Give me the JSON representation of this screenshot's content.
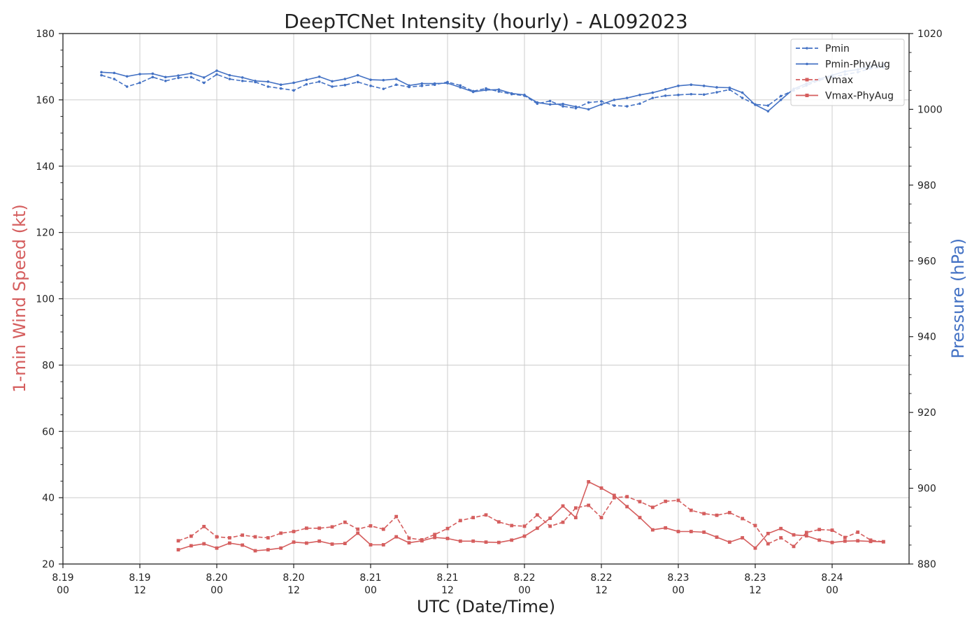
{
  "chart_data": {
    "type": "line",
    "title": "DeepTCNet Intensity (hourly) - AL092023",
    "xlabel": "UTC (Date/Time)",
    "ylabel_left": "1-min Wind Speed (kt)",
    "ylabel_right": "Pressure (hPa)",
    "ylim_left": [
      20,
      180
    ],
    "ylim_right": [
      880,
      1020
    ],
    "yticks_left": [
      "20",
      "40",
      "60",
      "80",
      "100",
      "120",
      "140",
      "160",
      "180"
    ],
    "yticks_right": [
      "880",
      "900",
      "920",
      "940",
      "960",
      "980",
      "1000",
      "1020"
    ],
    "xlim_hours": [
      0,
      132
    ],
    "xticks": [
      {
        "date": "8.19",
        "time": "00"
      },
      {
        "date": "8.19",
        "time": "12"
      },
      {
        "date": "8.20",
        "time": "00"
      },
      {
        "date": "8.20",
        "time": "12"
      },
      {
        "date": "8.21",
        "time": "00"
      },
      {
        "date": "8.21",
        "time": "12"
      },
      {
        "date": "8.22",
        "time": "00"
      },
      {
        "date": "8.22",
        "time": "12"
      },
      {
        "date": "8.23",
        "time": "00"
      },
      {
        "date": "8.23",
        "time": "12"
      },
      {
        "date": "8.24",
        "time": "00"
      }
    ],
    "grid": true,
    "legend_position": "top-right",
    "colors": {
      "pressure": "#4472c4",
      "wind": "#d55e5e"
    },
    "series": [
      {
        "name": "Pmin",
        "axis": "right",
        "style": "dashed",
        "marker": "dot",
        "color": "#4472c4",
        "x": [
          6,
          8,
          10,
          12,
          14,
          16,
          18,
          20,
          22,
          24,
          26,
          28,
          30,
          32,
          34,
          36,
          38,
          40,
          42,
          44,
          46,
          48,
          50,
          52,
          54,
          56,
          58,
          60,
          62,
          64,
          66,
          68,
          70,
          72,
          74,
          76,
          78,
          80,
          82,
          84,
          86,
          88,
          90,
          92,
          94,
          96,
          98,
          100,
          102,
          104,
          106,
          108,
          110,
          112,
          114,
          116,
          118,
          120,
          122,
          124,
          126,
          128
        ],
        "values": [
          1009.0,
          1008.0,
          1006.0,
          1007.0,
          1008.5,
          1007.5,
          1008.3,
          1008.5,
          1007.0,
          1009.2,
          1008.0,
          1007.5,
          1007.2,
          1006.0,
          1005.5,
          1005.0,
          1006.6,
          1007.3,
          1006.0,
          1006.4,
          1007.2,
          1006.2,
          1005.4,
          1006.5,
          1005.9,
          1006.2,
          1006.5,
          1007.2,
          1006.3,
          1004.8,
          1005.5,
          1004.7,
          1004.0,
          1003.6,
          1001.5,
          1002.2,
          1000.8,
          1000.3,
          1001.8,
          1002.1,
          1001.0,
          1000.8,
          1001.5,
          1003.0,
          1003.6,
          1003.8,
          1004.0,
          1003.9,
          1004.5,
          1005.2,
          1003.0,
          1001.3,
          1001.0,
          1003.5,
          1005.0,
          1006.3,
          1007.7,
          1008.5,
          1009.2,
          1009.8,
          1010.8,
          1011.1
        ]
      },
      {
        "name": "Pmin-PhyAug",
        "axis": "right",
        "style": "solid",
        "marker": "dot",
        "color": "#4472c4",
        "x": [
          6,
          8,
          10,
          12,
          14,
          16,
          18,
          20,
          22,
          24,
          26,
          28,
          30,
          32,
          34,
          36,
          38,
          40,
          42,
          44,
          46,
          48,
          50,
          52,
          54,
          56,
          58,
          60,
          62,
          64,
          66,
          68,
          70,
          72,
          74,
          76,
          78,
          80,
          82,
          84,
          86,
          88,
          90,
          92,
          94,
          96,
          98,
          100,
          102,
          104,
          106,
          108,
          110,
          112,
          114,
          116,
          118,
          120,
          122,
          124,
          126,
          128
        ],
        "values": [
          1009.8,
          1009.6,
          1008.7,
          1009.3,
          1009.4,
          1008.5,
          1008.9,
          1009.5,
          1008.4,
          1010.2,
          1009.0,
          1008.4,
          1007.5,
          1007.3,
          1006.5,
          1007.0,
          1007.8,
          1008.6,
          1007.4,
          1008.0,
          1009.0,
          1007.8,
          1007.7,
          1008.0,
          1006.3,
          1006.8,
          1006.8,
          1006.9,
          1005.8,
          1004.6,
          1005.1,
          1005.2,
          1004.2,
          1003.8,
          1001.8,
          1001.3,
          1001.4,
          1000.7,
          1000.0,
          1001.3,
          1002.5,
          1003.0,
          1003.8,
          1004.4,
          1005.3,
          1006.2,
          1006.5,
          1006.2,
          1005.8,
          1005.7,
          1004.4,
          1001.2,
          999.5,
          1002.5,
          1005.4,
          1006.8,
          1008.0,
          1009.0,
          1010.0,
          1010.5,
          1011.3,
          1011.9
        ]
      },
      {
        "name": "Vmax",
        "axis": "left",
        "style": "dashed",
        "marker": "square",
        "color": "#d55e5e",
        "x": [
          18,
          20,
          22,
          24,
          26,
          28,
          30,
          32,
          34,
          36,
          38,
          40,
          42,
          44,
          46,
          48,
          50,
          52,
          54,
          56,
          58,
          60,
          62,
          64,
          66,
          68,
          70,
          72,
          74,
          76,
          78,
          80,
          82,
          84,
          86,
          88,
          90,
          92,
          94,
          96,
          98,
          100,
          102,
          104,
          106,
          108,
          110,
          112,
          114,
          116,
          118,
          120,
          122,
          124,
          126,
          128
        ],
        "values": [
          27,
          28.4,
          31.3,
          28.2,
          27.9,
          28.7,
          28.2,
          27.9,
          29.3,
          29.8,
          30.8,
          30.8,
          31.2,
          32.6,
          30.5,
          31.5,
          30.5,
          34.3,
          27.8,
          27.3,
          28.9,
          30.7,
          33.1,
          34.0,
          34.8,
          32.7,
          31.6,
          31.4,
          34.8,
          31.4,
          32.6,
          36.9,
          37.7,
          34.0,
          40.0,
          40.3,
          38.8,
          37.1,
          38.9,
          39.2,
          36.2,
          35.2,
          34.7,
          35.5,
          33.7,
          31.6,
          26.1,
          27.9,
          25.3,
          29.5,
          30.4,
          30.2,
          28.0,
          29.6,
          27.2,
          26.7
        ]
      },
      {
        "name": "Vmax-PhyAug",
        "axis": "left",
        "style": "solid",
        "marker": "square",
        "color": "#d55e5e",
        "x": [
          18,
          20,
          22,
          24,
          26,
          28,
          30,
          32,
          34,
          36,
          38,
          40,
          42,
          44,
          46,
          48,
          50,
          52,
          54,
          56,
          58,
          60,
          62,
          64,
          66,
          68,
          70,
          72,
          74,
          76,
          78,
          80,
          82,
          84,
          86,
          88,
          90,
          92,
          94,
          96,
          98,
          100,
          102,
          104,
          106,
          108,
          110,
          112,
          114,
          116,
          118,
          120,
          122,
          124,
          126,
          128
        ],
        "values": [
          24.3,
          25.5,
          26.1,
          24.8,
          26.3,
          25.7,
          24.0,
          24.3,
          24.8,
          26.6,
          26.3,
          26.9,
          26.0,
          26.2,
          29.3,
          25.8,
          25.8,
          28.2,
          26.4,
          27.0,
          28.0,
          27.7,
          26.9,
          26.9,
          26.6,
          26.5,
          27.2,
          28.4,
          30.8,
          33.8,
          37.5,
          34.0,
          44.8,
          42.9,
          40.7,
          37.3,
          34.0,
          30.3,
          30.9,
          29.8,
          29.8,
          29.6,
          28.1,
          26.6,
          27.9,
          24.8,
          29.2,
          30.7,
          28.8,
          28.5,
          27.2,
          26.5,
          26.9,
          27.0,
          26.8,
          26.7
        ]
      }
    ]
  }
}
